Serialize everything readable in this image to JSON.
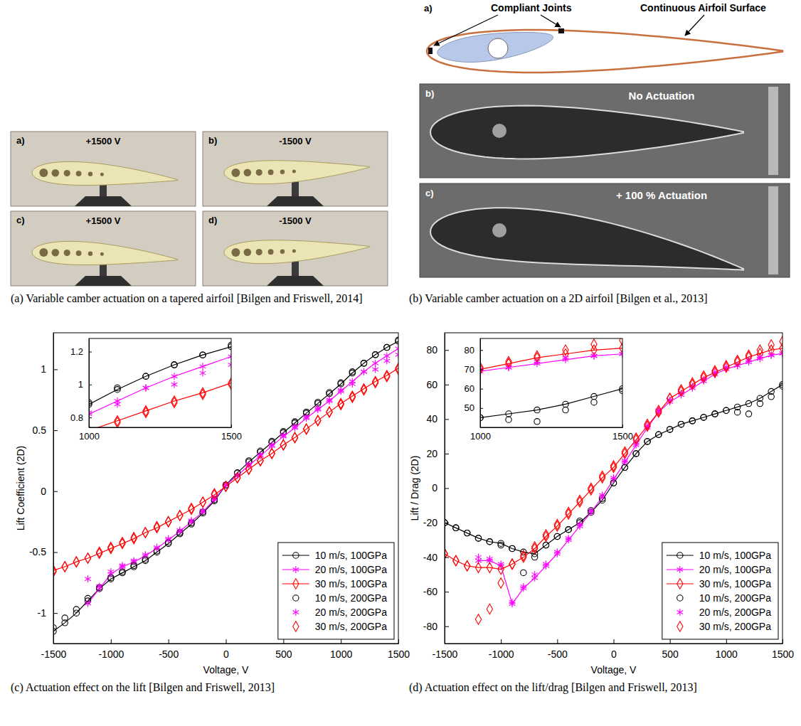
{
  "figure": {
    "left": {
      "panels": [
        {
          "letter": "a)",
          "label": "+1500 V"
        },
        {
          "letter": "b)",
          "label": "-1500 V"
        },
        {
          "letter": "c)",
          "label": "+1500 V"
        },
        {
          "letter": "d)",
          "label": "-1500 V"
        }
      ],
      "caption": "(a) Variable camber actuation on a tapered airfoil [Bilgen and Friswell, 2014]"
    },
    "right": {
      "diagram": {
        "letter": "a)",
        "labels": [
          "Compliant Joints",
          "Continuous Airfoil Surface"
        ]
      },
      "panels": [
        {
          "letter": "b)",
          "label": "No Actuation"
        },
        {
          "letter": "c)",
          "label": "+ 100 % Actuation"
        }
      ],
      "caption": "(b) Variable camber actuation on a 2D airfoil [Bilgen et al., 2013]"
    }
  },
  "chart_data": [
    {
      "type": "line",
      "caption": "(c) Actuation effect on the lift [Bilgen and Friswell, 2013]",
      "xlabel": "Voltage, V",
      "ylabel": "Lift Coefficient (2D)",
      "x": [
        -1500,
        -1400,
        -1300,
        -1200,
        -1100,
        -1000,
        -900,
        -800,
        -700,
        -600,
        -500,
        -400,
        -300,
        -200,
        -100,
        0,
        100,
        200,
        300,
        400,
        500,
        600,
        700,
        800,
        900,
        1000,
        1100,
        1200,
        1300,
        1400,
        1500
      ],
      "xlim": [
        -1500,
        1500
      ],
      "xticks": [
        -1500,
        -1000,
        -500,
        0,
        500,
        1000,
        1500
      ],
      "ylim": [
        -1.25,
        1.3
      ],
      "yticks": [
        -1,
        -0.5,
        0,
        0.5,
        1
      ],
      "grid": false,
      "legend": "lower right",
      "series": [
        {
          "name": "10 m/s, 100GPa",
          "color": "#000000",
          "marker": "circle",
          "line_style": "solid",
          "values": [
            -1.15,
            -1.08,
            -1.0,
            -0.9,
            -0.8,
            -0.72,
            -0.67,
            -0.62,
            -0.57,
            -0.5,
            -0.43,
            -0.35,
            -0.27,
            -0.18,
            -0.08,
            0.05,
            0.15,
            0.24,
            0.32,
            0.4,
            0.48,
            0.56,
            0.64,
            0.72,
            0.8,
            0.88,
            0.97,
            1.05,
            1.12,
            1.18,
            1.23
          ]
        },
        {
          "name": "20 m/s, 100GPa",
          "color": "#ff00ff",
          "marker": "star",
          "line_style": "solid",
          "values": [
            null,
            null,
            null,
            -0.92,
            -0.8,
            -0.68,
            -0.62,
            -0.58,
            -0.53,
            -0.47,
            -0.4,
            -0.33,
            -0.25,
            -0.17,
            -0.07,
            0.05,
            0.13,
            0.21,
            0.29,
            0.37,
            0.45,
            0.52,
            0.6,
            0.67,
            0.74,
            0.82,
            0.9,
            0.98,
            1.05,
            1.11,
            1.17
          ]
        },
        {
          "name": "30 m/s, 100GPa",
          "color": "#ff0000",
          "marker": "diamond",
          "line_style": "solid",
          "values": [
            -0.65,
            -0.62,
            -0.58,
            -0.55,
            -0.51,
            -0.47,
            -0.43,
            -0.39,
            -0.34,
            -0.3,
            -0.25,
            -0.2,
            -0.15,
            -0.09,
            -0.03,
            0.04,
            0.11,
            0.18,
            0.25,
            0.31,
            0.38,
            0.44,
            0.51,
            0.58,
            0.65,
            0.72,
            0.78,
            0.84,
            0.9,
            0.95,
            1.01
          ]
        },
        {
          "name": "10 m/s, 200GPa",
          "color": "#000000",
          "marker": "circle",
          "line_style": "none",
          "values": [
            -1.12,
            -1.04,
            -0.97,
            -0.88,
            -0.79,
            -0.71,
            -0.66,
            -0.61,
            -0.56,
            -0.49,
            -0.42,
            -0.34,
            -0.26,
            -0.17,
            -0.07,
            0.05,
            0.15,
            0.25,
            0.33,
            0.41,
            0.49,
            0.57,
            0.65,
            0.73,
            0.81,
            0.89,
            0.98,
            1.05,
            1.12,
            1.18,
            1.24
          ]
        },
        {
          "name": "20 m/s, 200GPa",
          "color": "#ff00ff",
          "marker": "star",
          "line_style": "none",
          "values": [
            null,
            null,
            null,
            -0.72,
            -0.78,
            -0.66,
            -0.61,
            -0.57,
            -0.52,
            -0.46,
            -0.39,
            -0.32,
            -0.24,
            -0.16,
            -0.06,
            0.05,
            0.13,
            0.22,
            0.3,
            0.38,
            0.46,
            0.53,
            0.61,
            0.68,
            0.75,
            0.83,
            0.88,
            0.98,
            1.0,
            1.07,
            1.12
          ]
        },
        {
          "name": "30 m/s, 200GPa",
          "color": "#ff0000",
          "marker": "diamond",
          "line_style": "none",
          "values": [
            -0.66,
            -0.62,
            -0.58,
            -0.55,
            -0.5,
            -0.46,
            -0.42,
            -0.38,
            -0.34,
            -0.29,
            -0.25,
            -0.2,
            -0.14,
            -0.09,
            -0.02,
            0.04,
            0.11,
            0.18,
            0.25,
            0.31,
            0.38,
            0.44,
            0.51,
            0.58,
            0.65,
            0.71,
            0.77,
            0.83,
            0.89,
            0.94,
            1.0
          ]
        }
      ],
      "inset": {
        "xlim": [
          1000,
          1500
        ],
        "xticks": [
          1000,
          1500
        ],
        "ylim": [
          0.74,
          1.28
        ],
        "yticks": [
          0.8,
          1,
          1.2
        ]
      }
    },
    {
      "type": "line",
      "caption": "(d) Actuation effect on the lift/drag [Bilgen and Friswell, 2013]",
      "xlabel": "Voltage, V",
      "ylabel": "Lift / Drag (2D)",
      "x": [
        -1500,
        -1400,
        -1300,
        -1200,
        -1100,
        -1000,
        -900,
        -800,
        -700,
        -600,
        -500,
        -400,
        -300,
        -200,
        -100,
        0,
        100,
        200,
        300,
        400,
        500,
        600,
        700,
        800,
        900,
        1000,
        1100,
        1200,
        1300,
        1400,
        1500
      ],
      "xlim": [
        -1500,
        1500
      ],
      "xticks": [
        -1500,
        -1000,
        -500,
        0,
        500,
        1000,
        1500
      ],
      "ylim": [
        -90,
        90
      ],
      "yticks": [
        -80,
        -60,
        -40,
        -20,
        0,
        20,
        40,
        60,
        80
      ],
      "grid": false,
      "legend": "lower right",
      "series": [
        {
          "name": "10 m/s, 100GPa",
          "color": "#000000",
          "marker": "circle",
          "line_style": "solid",
          "values": [
            -20,
            -23,
            -26,
            -29,
            -31,
            -32,
            -35,
            -37,
            -38,
            -33,
            -28,
            -24,
            -20,
            -14,
            -7,
            3,
            12,
            20,
            27,
            31,
            34,
            37,
            39,
            41,
            43,
            45,
            47,
            49,
            52,
            56,
            60
          ]
        },
        {
          "name": "20 m/s, 100GPa",
          "color": "#ff00ff",
          "marker": "star",
          "line_style": "solid",
          "values": [
            null,
            null,
            null,
            -42,
            -42,
            -45,
            -67,
            -58,
            -52,
            -45,
            -38,
            -30,
            -22,
            -14,
            -5,
            5,
            15,
            25,
            35,
            44,
            50,
            54,
            58,
            62,
            66,
            69,
            71,
            73,
            75,
            77,
            78
          ]
        },
        {
          "name": "30 m/s, 100GPa",
          "color": "#ff0000",
          "marker": "diamond",
          "line_style": "solid",
          "values": [
            -38,
            -42,
            -45,
            -46,
            -46,
            -47,
            -44,
            -40,
            -35,
            -28,
            -22,
            -15,
            -8,
            -1,
            6,
            12,
            20,
            28,
            36,
            44,
            52,
            56,
            60,
            64,
            67,
            70,
            73,
            76,
            78,
            80,
            81
          ]
        },
        {
          "name": "10 m/s, 200GPa",
          "color": "#000000",
          "marker": "circle",
          "line_style": "none",
          "values": [
            -20,
            -23,
            -26,
            -29,
            -31,
            -33,
            -35,
            -49,
            -40,
            -33,
            -28,
            -24,
            -19,
            -13,
            -6,
            3,
            12,
            20,
            27,
            31,
            34,
            37,
            39,
            41,
            43,
            45,
            44,
            43,
            49,
            53,
            59
          ]
        },
        {
          "name": "20 m/s, 200GPa",
          "color": "#ff00ff",
          "marker": "star",
          "line_style": "none",
          "values": [
            null,
            null,
            null,
            -40,
            -41,
            -44,
            -66,
            -57,
            -50,
            -44,
            -37,
            -29,
            -21,
            -13,
            -4,
            6,
            16,
            26,
            36,
            45,
            51,
            55,
            59,
            63,
            67,
            70,
            71,
            74,
            76,
            77,
            78
          ]
        },
        {
          "name": "30 m/s, 200GPa",
          "color": "#ff0000",
          "marker": "diamond",
          "line_style": "none",
          "values": [
            -38,
            -42,
            -45,
            -76,
            -70,
            -55,
            -44,
            -39,
            -34,
            -27,
            -21,
            -14,
            -7,
            0,
            7,
            13,
            21,
            29,
            37,
            45,
            52,
            57,
            61,
            65,
            68,
            71,
            74,
            77,
            80,
            83,
            85
          ]
        }
      ],
      "inset": {
        "xlim": [
          1000,
          1500
        ],
        "xticks": [
          1000,
          1500
        ],
        "ylim": [
          40,
          86
        ],
        "yticks": [
          50,
          60,
          70,
          80
        ]
      }
    }
  ]
}
